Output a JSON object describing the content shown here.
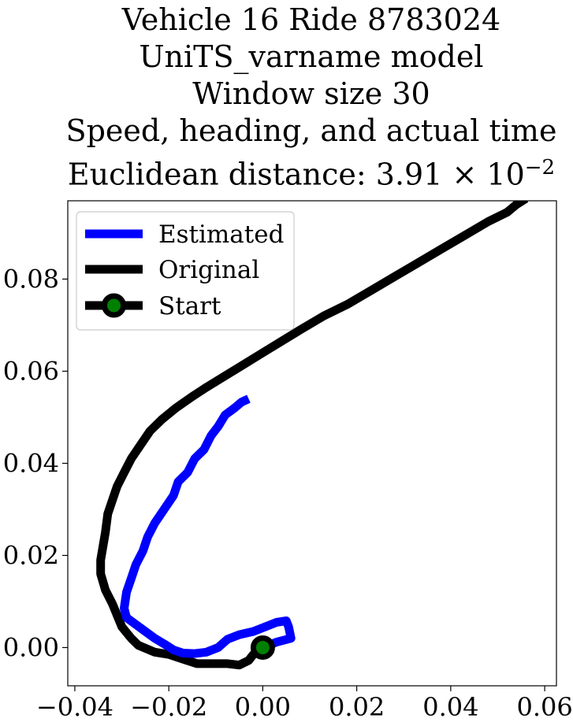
{
  "chart_data": {
    "type": "line",
    "title_lines": [
      "Vehicle 16 Ride 8783024",
      "UniTS_varname model",
      "Window size 30",
      "Speed, heading, and actual time"
    ],
    "distance_label": "Euclidean distance: ",
    "distance_mantissa": "3.91",
    "distance_times": "×",
    "distance_base": "10",
    "distance_exponent": "−2",
    "xlabel": "",
    "ylabel": "",
    "xlim": [
      -0.0415,
      0.0625
    ],
    "ylim": [
      -0.0083,
      0.097
    ],
    "xticks": [
      -0.04,
      -0.02,
      0.0,
      0.02,
      0.04,
      0.06
    ],
    "xtick_labels": [
      "−0.04",
      "−0.02",
      "0.00",
      "0.02",
      "0.04",
      "0.06"
    ],
    "yticks": [
      0.0,
      0.02,
      0.04,
      0.06,
      0.08
    ],
    "ytick_labels": [
      "0.00",
      "0.02",
      "0.04",
      "0.06",
      "0.08"
    ],
    "grid": false,
    "legend_placement": "upper-left",
    "series": [
      {
        "name": "Estimated",
        "color": "#0000ff",
        "x": [
          0.0,
          0.003,
          0.006,
          0.0055,
          0.005,
          0.003,
          0.0005,
          -0.002,
          -0.005,
          -0.0075,
          -0.0095,
          -0.012,
          -0.0145,
          -0.017,
          -0.019,
          -0.021,
          -0.023,
          -0.025,
          -0.027,
          -0.029,
          -0.0295,
          -0.029,
          -0.028,
          -0.027,
          -0.0255,
          -0.0245,
          -0.023,
          -0.021,
          -0.019,
          -0.018,
          -0.016,
          -0.0145,
          -0.0125,
          -0.011,
          -0.0095,
          -0.008,
          -0.006,
          -0.0045,
          -0.003
        ],
        "y": [
          0.0,
          0.0012,
          0.002,
          0.0045,
          0.0058,
          0.0055,
          0.0045,
          0.0035,
          0.0028,
          0.0018,
          0.0,
          -0.001,
          -0.0013,
          -0.0012,
          -0.0005,
          0.0008,
          0.002,
          0.0035,
          0.005,
          0.0065,
          0.0085,
          0.012,
          0.015,
          0.018,
          0.021,
          0.024,
          0.027,
          0.03,
          0.033,
          0.036,
          0.038,
          0.041,
          0.043,
          0.046,
          0.048,
          0.0505,
          0.052,
          0.0533,
          0.054
        ]
      },
      {
        "name": "Original",
        "color": "#000000",
        "x": [
          0.0,
          -0.002,
          -0.003,
          -0.005,
          -0.0075,
          -0.01,
          -0.014,
          -0.017,
          -0.02,
          -0.023,
          -0.0265,
          -0.028,
          -0.03,
          -0.031,
          -0.032,
          -0.0335,
          -0.0345,
          -0.0345,
          -0.034,
          -0.0335,
          -0.033,
          -0.032,
          -0.031,
          -0.0295,
          -0.028,
          -0.026,
          -0.024,
          -0.0215,
          -0.0185,
          -0.015,
          -0.012,
          -0.008,
          -0.004,
          0.0,
          0.004,
          0.008,
          0.013,
          0.018,
          0.023,
          0.028,
          0.033,
          0.038,
          0.043,
          0.048,
          0.052,
          0.054,
          0.056
        ],
        "y": [
          0.0,
          -0.0015,
          -0.0028,
          -0.0038,
          -0.0035,
          -0.0035,
          -0.0035,
          -0.0025,
          -0.0015,
          -0.001,
          0.0005,
          0.002,
          0.0045,
          0.007,
          0.0095,
          0.0125,
          0.016,
          0.019,
          0.022,
          0.025,
          0.029,
          0.032,
          0.035,
          0.038,
          0.041,
          0.044,
          0.047,
          0.0495,
          0.052,
          0.0545,
          0.0565,
          0.059,
          0.0615,
          0.064,
          0.0665,
          0.069,
          0.072,
          0.0745,
          0.0775,
          0.0805,
          0.0835,
          0.0865,
          0.0895,
          0.0925,
          0.0945,
          0.0962,
          0.0975
        ]
      },
      {
        "name": "Start",
        "color": "#000000",
        "marker_face_color": "#008000",
        "x": [
          0.0
        ],
        "y": [
          0.0
        ]
      }
    ]
  }
}
